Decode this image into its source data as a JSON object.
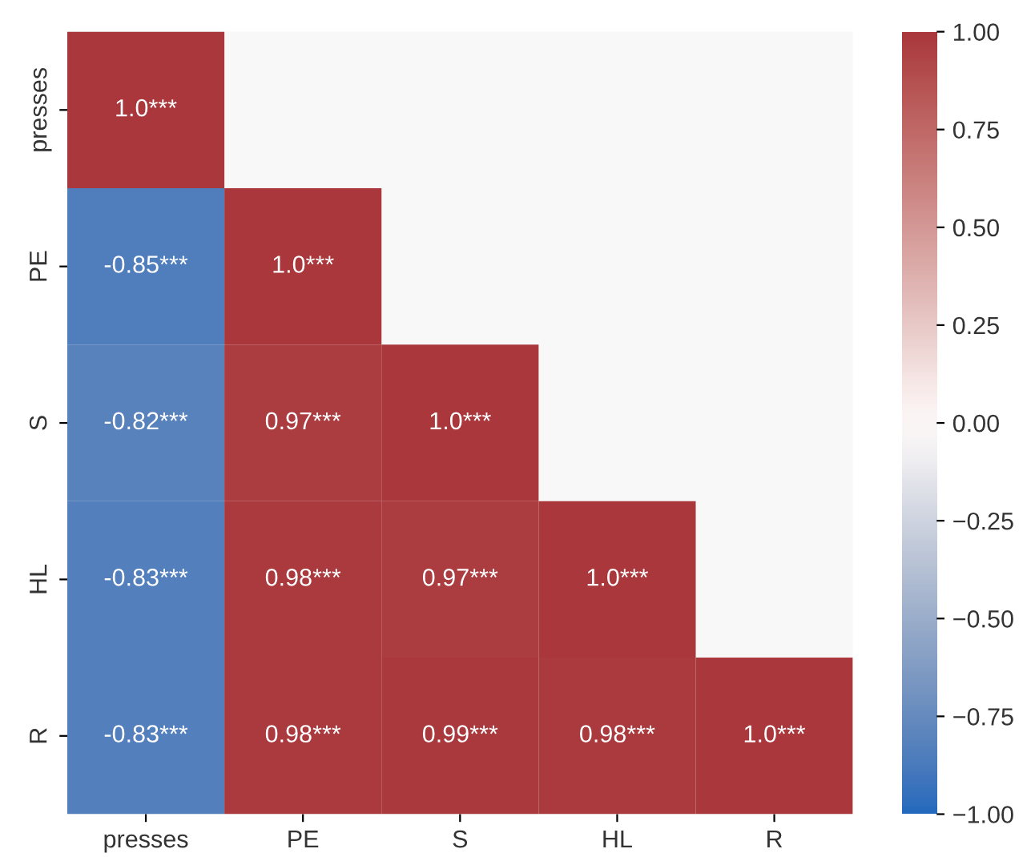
{
  "chart_data": {
    "type": "heatmap",
    "categories": [
      "presses",
      "PE",
      "S",
      "HL",
      "R"
    ],
    "y_categories": [
      "presses",
      "PE",
      "S",
      "HL",
      "R"
    ],
    "cells": [
      [
        1.0,
        null,
        null,
        null,
        null
      ],
      [
        -0.85,
        1.0,
        null,
        null,
        null
      ],
      [
        -0.82,
        0.97,
        1.0,
        null,
        null
      ],
      [
        -0.83,
        0.98,
        0.97,
        1.0,
        null
      ],
      [
        -0.83,
        0.98,
        0.99,
        0.98,
        1.0
      ]
    ],
    "cell_labels": [
      [
        "1.0***",
        null,
        null,
        null,
        null
      ],
      [
        "-0.85***",
        "1.0***",
        null,
        null,
        null
      ],
      [
        "-0.82***",
        "0.97***",
        "1.0***",
        null,
        null
      ],
      [
        "-0.83***",
        "0.98***",
        "0.97***",
        "1.0***",
        null
      ],
      [
        "-0.83***",
        "0.98***",
        "0.99***",
        "0.98***",
        "1.0***"
      ]
    ],
    "clim": [
      -1,
      1
    ],
    "cticks": [
      {
        "value": -1,
        "label": "−1.00"
      },
      {
        "value": -0.75,
        "label": "−0.75"
      },
      {
        "value": -0.5,
        "label": "−0.50"
      },
      {
        "value": -0.25,
        "label": "−0.25"
      },
      {
        "value": 0,
        "label": "0.00"
      },
      {
        "value": 0.25,
        "label": "0.25"
      },
      {
        "value": 0.5,
        "label": "0.50"
      },
      {
        "value": 0.75,
        "label": "0.75"
      },
      {
        "value": 1,
        "label": "1.00"
      }
    ]
  }
}
